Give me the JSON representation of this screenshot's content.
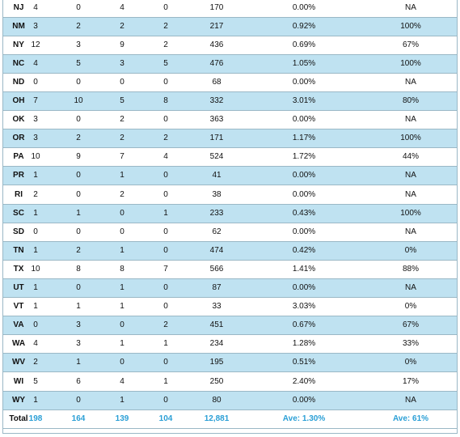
{
  "table": {
    "rows": [
      [
        "NJ",
        "4",
        "0",
        "4",
        "0",
        "170",
        "0.00%",
        "NA"
      ],
      [
        "NM",
        "3",
        "2",
        "2",
        "2",
        "217",
        "0.92%",
        "100%"
      ],
      [
        "NY",
        "12",
        "3",
        "9",
        "2",
        "436",
        "0.69%",
        "67%"
      ],
      [
        "NC",
        "4",
        "5",
        "3",
        "5",
        "476",
        "1.05%",
        "100%"
      ],
      [
        "ND",
        "0",
        "0",
        "0",
        "0",
        "68",
        "0.00%",
        "NA"
      ],
      [
        "OH",
        "7",
        "10",
        "5",
        "8",
        "332",
        "3.01%",
        "80%"
      ],
      [
        "OK",
        "3",
        "0",
        "2",
        "0",
        "363",
        "0.00%",
        "NA"
      ],
      [
        "OR",
        "3",
        "2",
        "2",
        "2",
        "171",
        "1.17%",
        "100%"
      ],
      [
        "PA",
        "10",
        "9",
        "7",
        "4",
        "524",
        "1.72%",
        "44%"
      ],
      [
        "PR",
        "1",
        "0",
        "1",
        "0",
        "41",
        "0.00%",
        "NA"
      ],
      [
        "RI",
        "2",
        "0",
        "2",
        "0",
        "38",
        "0.00%",
        "NA"
      ],
      [
        "SC",
        "1",
        "1",
        "0",
        "1",
        "233",
        "0.43%",
        "100%"
      ],
      [
        "SD",
        "0",
        "0",
        "0",
        "0",
        "62",
        "0.00%",
        "NA"
      ],
      [
        "TN",
        "1",
        "2",
        "1",
        "0",
        "474",
        "0.42%",
        "0%"
      ],
      [
        "TX",
        "10",
        "8",
        "8",
        "7",
        "566",
        "1.41%",
        "88%"
      ],
      [
        "UT",
        "1",
        "0",
        "1",
        "0",
        "87",
        "0.00%",
        "NA"
      ],
      [
        "VT",
        "1",
        "1",
        "1",
        "0",
        "33",
        "3.03%",
        "0%"
      ],
      [
        "VA",
        "0",
        "3",
        "0",
        "2",
        "451",
        "0.67%",
        "67%"
      ],
      [
        "WA",
        "4",
        "3",
        "1",
        "1",
        "234",
        "1.28%",
        "33%"
      ],
      [
        "WV",
        "2",
        "1",
        "0",
        "0",
        "195",
        "0.51%",
        "0%"
      ],
      [
        "WI",
        "5",
        "6",
        "4",
        "1",
        "250",
        "2.40%",
        "17%"
      ],
      [
        "WY",
        "1",
        "0",
        "1",
        "0",
        "80",
        "0.00%",
        "NA"
      ]
    ],
    "total": [
      "Total",
      "198",
      "164",
      "139",
      "104",
      "12,881",
      "Ave: 1.30%",
      "Ave: 61%"
    ]
  }
}
